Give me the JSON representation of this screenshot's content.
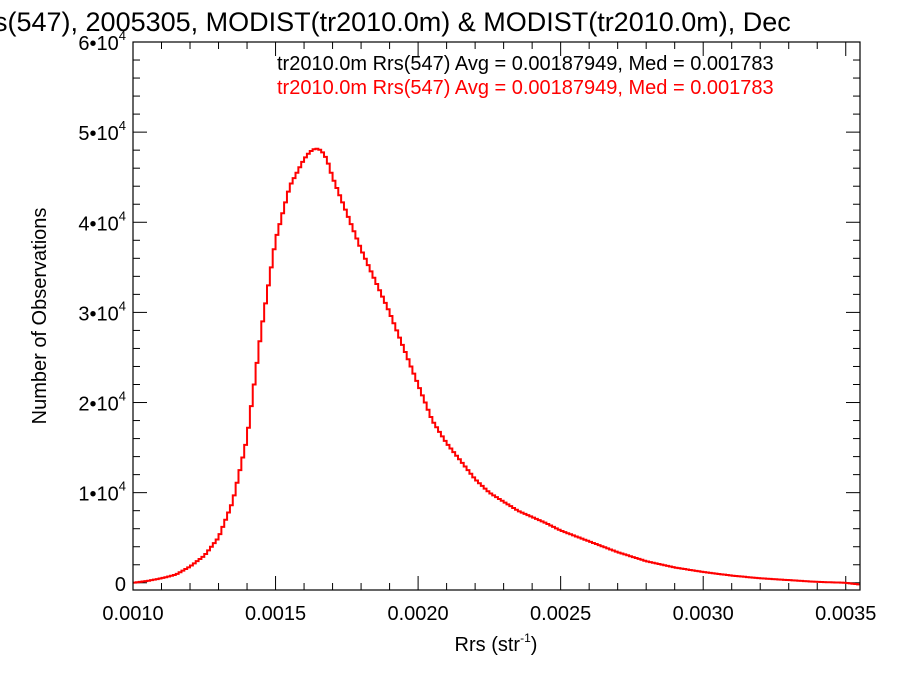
{
  "chart_data": {
    "type": "line",
    "title": "s(547), 2005305, MODIST(tr2010.0m) & MODIST(tr2010.0m), Dec",
    "xlabel": "Rrs (str",
    "xlabel_sup": "-1",
    "xlabel_close": ")",
    "ylabel": "Number of Observations",
    "xlim": [
      0.001,
      0.00355
    ],
    "ylim": [
      -800,
      60000
    ],
    "xticks": [
      "0.0010",
      "0.0015",
      "0.0020",
      "0.0025",
      "0.0030",
      "0.0035"
    ],
    "xtick_values": [
      0.001,
      0.0015,
      0.002,
      0.0025,
      0.003,
      0.0035
    ],
    "yticks": [
      {
        "value": 0,
        "base": "0",
        "exp": ""
      },
      {
        "value": 10000,
        "base": "1•10",
        "exp": "4"
      },
      {
        "value": 20000,
        "base": "2•10",
        "exp": "4"
      },
      {
        "value": 30000,
        "base": "3•10",
        "exp": "4"
      },
      {
        "value": 40000,
        "base": "4•10",
        "exp": "4"
      },
      {
        "value": 50000,
        "base": "5•10",
        "exp": "4"
      },
      {
        "value": 60000,
        "base": "6•10",
        "exp": "4"
      }
    ],
    "legend": [
      {
        "text": "tr2010.0m Rrs(547) Avg = 0.00187949, Med = 0.001783",
        "color": "#000000"
      },
      {
        "text": "tr2010.0m Rrs(547) Avg = 0.00187949, Med = 0.001783",
        "color": "#ff0000"
      }
    ],
    "series": [
      {
        "color": "#ff0000",
        "x": [
          0.001,
          0.00105,
          0.0011,
          0.00115,
          0.0012,
          0.00125,
          0.0013,
          0.00135,
          0.0014,
          0.00145,
          0.0015,
          0.00155,
          0.0016,
          0.00162,
          0.00164,
          0.00166,
          0.00168,
          0.0017,
          0.00175,
          0.0018,
          0.00185,
          0.0019,
          0.00195,
          0.002,
          0.00205,
          0.0021,
          0.00215,
          0.0022,
          0.00225,
          0.0023,
          0.00235,
          0.0024,
          0.00245,
          0.0025,
          0.0026,
          0.0027,
          0.0028,
          0.0029,
          0.003,
          0.0031,
          0.0032,
          0.0033,
          0.0034,
          0.0035,
          0.00355
        ],
        "y": [
          0,
          200,
          500,
          900,
          1800,
          3000,
          5000,
          9000,
          16000,
          28000,
          38000,
          44000,
          47000,
          47800,
          48200,
          48000,
          47000,
          45000,
          41000,
          37000,
          33500,
          30000,
          26000,
          22000,
          18000,
          15500,
          13500,
          11500,
          10000,
          9000,
          8000,
          7300,
          6600,
          5800,
          4600,
          3400,
          2400,
          1700,
          1200,
          800,
          500,
          300,
          100,
          0,
          -200
        ]
      }
    ]
  }
}
